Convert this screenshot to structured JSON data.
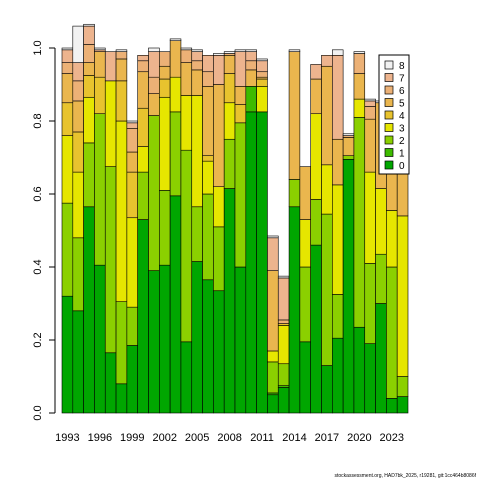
{
  "chart_data": {
    "type": "bar",
    "stacked": true,
    "categories": [
      "1993",
      "1994",
      "1995",
      "1996",
      "1997",
      "1998",
      "1999",
      "2000",
      "2001",
      "2002",
      "2003",
      "2004",
      "2005",
      "2006",
      "2007",
      "2008",
      "2009",
      "2010",
      "2011",
      "2012",
      "2013",
      "2014",
      "2015",
      "2016",
      "2017",
      "2018",
      "2019",
      "2020",
      "2021",
      "2022",
      "2023",
      "2024"
    ],
    "x_tick_labels": [
      "1993",
      "1996",
      "1999",
      "2002",
      "2005",
      "2008",
      "2011",
      "2014",
      "2017",
      "2020",
      "2023"
    ],
    "ylim": [
      0,
      1
    ],
    "y_ticks": [
      "0.0",
      "0.2",
      "0.4",
      "0.6",
      "0.8",
      "1.0"
    ],
    "grid": false,
    "legend_position": "top-right",
    "series": [
      {
        "name": "0",
        "color": "#00A600",
        "values": [
          0.32,
          0.28,
          0.565,
          0.405,
          0.165,
          0.08,
          0.185,
          0.53,
          0.39,
          0.405,
          0.595,
          0.195,
          0.415,
          0.365,
          0.335,
          0.615,
          0.4,
          0.825,
          0.825,
          0.05,
          0.07,
          0.565,
          0.195,
          0.46,
          0.13,
          0.205,
          0.695,
          0.235,
          0.19,
          0.3,
          0.04,
          0.045
        ]
      },
      {
        "name": "1",
        "color": "#3EBB00",
        "values": [
          0.0,
          0.0,
          0.0,
          0.0,
          0.0,
          0.0,
          0.0,
          0.0,
          0.0,
          0.0,
          0.0,
          0.0,
          0.0,
          0.0,
          0.0,
          0.0,
          0.0,
          0.07,
          0.0,
          0.005,
          0.005,
          0.0,
          0.0,
          0.0,
          0.0,
          0.0,
          0.0,
          0.0,
          0.0,
          0.0,
          0.0,
          0.0
        ]
      },
      {
        "name": "2",
        "color": "#8BD000",
        "values": [
          0.255,
          0.2,
          0.175,
          0.415,
          0.51,
          0.225,
          0.105,
          0.13,
          0.425,
          0.205,
          0.23,
          0.525,
          0.15,
          0.235,
          0.175,
          0.135,
          0.395,
          0.0,
          0.0,
          0.085,
          0.06,
          0.075,
          0.205,
          0.125,
          0.415,
          0.12,
          0.01,
          0.575,
          0.22,
          0.135,
          0.36,
          0.055
        ]
      },
      {
        "name": "3",
        "color": "#E6E600",
        "values": [
          0.185,
          0.18,
          0.125,
          0.0,
          0.235,
          0.495,
          0.245,
          0.07,
          0.0,
          0.255,
          0.095,
          0.15,
          0.305,
          0.09,
          0.11,
          0.1,
          0.0,
          0.0,
          0.07,
          0.03,
          0.105,
          0.0,
          0.13,
          0.235,
          0.135,
          0.3,
          0.0,
          0.05,
          0.25,
          0.18,
          0.155,
          0.44
        ]
      },
      {
        "name": "4",
        "color": "#E8C32E",
        "values": [
          0.09,
          0.11,
          0.06,
          0.1,
          0.0,
          0.11,
          0.125,
          0.105,
          0.0,
          0.05,
          0.0,
          0.0,
          0.0,
          0.015,
          0.0,
          0.08,
          0.05,
          0.0,
          0.02,
          0.0,
          0.005,
          0.0,
          0.0,
          0.0,
          0.0,
          0.0,
          0.0,
          0.0,
          0.0,
          0.0,
          0.0,
          0.0
        ]
      },
      {
        "name": "5",
        "color": "#EAB64E",
        "values": [
          0.08,
          0.085,
          0.035,
          0.07,
          0.0,
          0.06,
          0.055,
          0.1,
          0.06,
          0.035,
          0.1,
          0.09,
          0.07,
          0.19,
          0.28,
          0.05,
          0.05,
          0.045,
          0.005,
          0.22,
          0.0,
          0.35,
          0.145,
          0.095,
          0.27,
          0.125,
          0.05,
          0.07,
          0.145,
          0.235,
          0.265,
          0.31
        ]
      },
      {
        "name": "6",
        "color": "#ECB176",
        "values": [
          0.03,
          0.055,
          0.05,
          0.0,
          0.0,
          0.02,
          0.065,
          0.03,
          0.045,
          0.04,
          0.0,
          0.035,
          0.025,
          0.04,
          0.0,
          0.005,
          0.0,
          0.025,
          0.015,
          0.0,
          0.01,
          0.0,
          0.0,
          0.0,
          0.0,
          0.0,
          0.005,
          0.055,
          0.035,
          0.0,
          0.035,
          0.0
        ]
      },
      {
        "name": "7",
        "color": "#EDB48E",
        "values": [
          0.035,
          0.05,
          0.05,
          0.005,
          0.08,
          0.0,
          0.015,
          0.015,
          0.07,
          0.0,
          0.0,
          0.0,
          0.025,
          0.045,
          0.08,
          0.0,
          0.095,
          0.025,
          0.03,
          0.09,
          0.115,
          0.0,
          0.0,
          0.04,
          0.03,
          0.23,
          0.0,
          0.0,
          0.015,
          0.0,
          0.03,
          0.05
        ]
      },
      {
        "name": "8",
        "color": "#F2F2F2",
        "values": [
          0.005,
          0.1,
          0.005,
          0.005,
          0.0,
          0.005,
          0.005,
          0.0,
          0.01,
          0.0,
          0.005,
          0.005,
          0.005,
          0.0,
          0.005,
          0.005,
          0.005,
          0.005,
          0.005,
          0.005,
          0.005,
          0.005,
          0.0,
          0.0,
          0.0,
          0.015,
          0.005,
          0.005,
          0.005,
          0.005,
          0.005,
          0.0
        ]
      }
    ]
  },
  "footer_text": "stockassessment.org, HAD7bk_2025, r19281, git:1cc464b8086f"
}
